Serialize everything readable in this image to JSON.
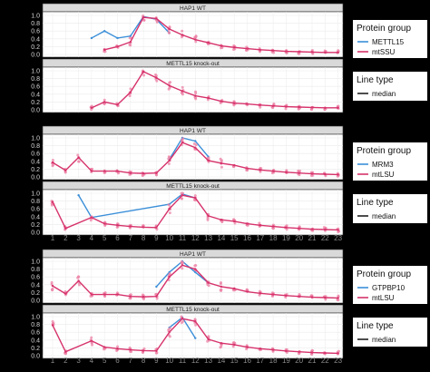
{
  "colors": {
    "blue": "#3b8fd9",
    "red": "#d6336c",
    "red_points": "#ec83a6",
    "grid": "#ebebeb",
    "panel_bg": "#ffffff",
    "page_bg": "#000000"
  },
  "chart_data": [
    {
      "type": "line",
      "group": 1,
      "strip_labels": [
        "HAP1 WT",
        "METTL15 knock-out"
      ],
      "x": [
        1,
        2,
        3,
        4,
        5,
        6,
        7,
        8,
        9,
        10,
        11,
        12,
        13,
        14,
        15,
        16,
        17,
        18,
        19,
        20,
        21,
        22,
        23
      ],
      "ylim": [
        0,
        1.0
      ],
      "y_ticks": [
        "0.0",
        "0.2",
        "0.4",
        "0.6",
        "0.8",
        "1.0"
      ],
      "legend_title_protein": "Protein group",
      "protein_entries": [
        "METTL15",
        "mtSSU"
      ],
      "legend_title_line": "Line type",
      "line_entries": [
        "median"
      ],
      "panels": [
        {
          "series": [
            {
              "name": "METTL15",
              "color": "blue",
              "x": [
                4,
                5,
                6,
                7,
                8,
                9,
                10
              ],
              "y": [
                0.42,
                0.6,
                0.42,
                0.47,
                0.97,
                0.9,
                0.55
              ]
            },
            {
              "name": "mtSSU",
              "color": "red",
              "x": [
                5,
                6,
                7,
                8,
                9,
                10,
                11,
                12,
                13,
                14,
                15,
                16,
                17,
                18,
                19,
                20,
                21,
                22,
                23
              ],
              "y": [
                0.12,
                0.2,
                0.32,
                0.95,
                0.92,
                0.65,
                0.5,
                0.38,
                0.3,
                0.22,
                0.18,
                0.15,
                0.12,
                0.1,
                0.08,
                0.07,
                0.06,
                0.05,
                0.05
              ]
            }
          ]
        },
        {
          "series": [
            {
              "name": "mtSSU",
              "color": "red",
              "x": [
                4,
                5,
                6,
                7,
                8,
                9,
                10,
                11,
                12,
                13,
                14,
                15,
                16,
                17,
                18,
                19,
                20,
                21,
                22,
                23
              ],
              "y": [
                0.05,
                0.2,
                0.13,
                0.45,
                0.98,
                0.82,
                0.62,
                0.48,
                0.36,
                0.3,
                0.22,
                0.17,
                0.15,
                0.12,
                0.1,
                0.08,
                0.07,
                0.06,
                0.05,
                0.05
              ]
            }
          ]
        }
      ]
    },
    {
      "type": "line",
      "group": 2,
      "strip_labels": [
        "HAP1 WT",
        "METTL15 knock-out"
      ],
      "x": [
        1,
        2,
        3,
        4,
        5,
        6,
        7,
        8,
        9,
        10,
        11,
        12,
        13,
        14,
        15,
        16,
        17,
        18,
        19,
        20,
        21,
        22,
        23
      ],
      "ylim": [
        0,
        1.0
      ],
      "y_ticks": [
        "0.0",
        "0.2",
        "0.4",
        "0.6",
        "0.8",
        "1.0"
      ],
      "legend_title_protein": "Protein group",
      "protein_entries": [
        "MRM3",
        "mtLSU"
      ],
      "legend_title_line": "Line type",
      "line_entries": [
        "median"
      ],
      "panels": [
        {
          "series": [
            {
              "name": "MRM3",
              "color": "blue",
              "x": [
                10,
                11,
                12,
                13
              ],
              "y": [
                0.45,
                1.0,
                0.92,
                0.52
              ]
            },
            {
              "name": "mtLSU",
              "color": "red",
              "x": [
                1,
                2,
                3,
                4,
                5,
                6,
                7,
                8,
                9,
                10,
                11,
                12,
                13,
                14,
                15,
                16,
                17,
                18,
                19,
                20,
                21,
                22,
                23
              ],
              "y": [
                0.37,
                0.17,
                0.5,
                0.15,
                0.15,
                0.15,
                0.1,
                0.09,
                0.1,
                0.42,
                0.88,
                0.75,
                0.42,
                0.35,
                0.3,
                0.22,
                0.18,
                0.15,
                0.12,
                0.1,
                0.08,
                0.07,
                0.06
              ]
            }
          ]
        },
        {
          "series": [
            {
              "name": "MRM3",
              "color": "blue",
              "x": [
                3,
                4,
                10,
                11,
                12
              ],
              "y": [
                0.95,
                0.38,
                0.72,
                0.98,
                0.88
              ]
            },
            {
              "name": "mtLSU",
              "color": "red",
              "x": [
                1,
                2,
                4,
                5,
                6,
                7,
                8,
                9,
                10,
                11,
                12,
                13,
                14,
                15,
                16,
                17,
                18,
                19,
                20,
                21,
                22,
                23
              ],
              "y": [
                0.78,
                0.1,
                0.38,
                0.22,
                0.18,
                0.15,
                0.13,
                0.12,
                0.6,
                0.95,
                0.88,
                0.42,
                0.32,
                0.28,
                0.22,
                0.18,
                0.15,
                0.12,
                0.1,
                0.08,
                0.07,
                0.06
              ]
            }
          ]
        }
      ]
    },
    {
      "type": "line",
      "group": 3,
      "strip_labels": [
        "HAP1 WT",
        "METTL15 knock-out"
      ],
      "x": [
        1,
        2,
        3,
        4,
        5,
        6,
        7,
        8,
        9,
        10,
        11,
        12,
        13,
        14,
        15,
        16,
        17,
        18,
        19,
        20,
        21,
        22,
        23
      ],
      "ylim": [
        0,
        1.0
      ],
      "y_ticks": [
        "0.0",
        "0.2",
        "0.4",
        "0.6",
        "0.8",
        "1.0"
      ],
      "legend_title_protein": "Protein group",
      "protein_entries": [
        "GTPBP10",
        "mtLSU"
      ],
      "legend_title_line": "Line type",
      "line_entries": [
        "median"
      ],
      "panels": [
        {
          "series": [
            {
              "name": "GTPBP10",
              "color": "blue",
              "x": [
                9,
                10,
                11,
                12,
                13
              ],
              "y": [
                0.35,
                0.72,
                1.0,
                0.72,
                0.45
              ]
            },
            {
              "name": "mtLSU",
              "color": "red",
              "x": [
                1,
                2,
                3,
                4,
                5,
                6,
                7,
                8,
                9,
                10,
                11,
                12,
                13,
                14,
                15,
                16,
                17,
                18,
                19,
                20,
                21,
                22,
                23
              ],
              "y": [
                0.37,
                0.17,
                0.5,
                0.15,
                0.15,
                0.15,
                0.1,
                0.09,
                0.1,
                0.6,
                0.9,
                0.8,
                0.45,
                0.35,
                0.3,
                0.22,
                0.18,
                0.15,
                0.12,
                0.1,
                0.08,
                0.07,
                0.06
              ]
            }
          ]
        },
        {
          "series": [
            {
              "name": "GTPBP10",
              "color": "blue",
              "x": [
                10,
                11,
                12
              ],
              "y": [
                0.72,
                0.98,
                0.45
              ]
            },
            {
              "name": "mtLSU",
              "color": "red",
              "x": [
                1,
                2,
                4,
                5,
                6,
                7,
                8,
                9,
                10,
                11,
                12,
                13,
                14,
                15,
                16,
                17,
                18,
                19,
                20,
                21,
                22,
                23
              ],
              "y": [
                0.78,
                0.1,
                0.38,
                0.22,
                0.18,
                0.15,
                0.13,
                0.12,
                0.6,
                0.95,
                0.88,
                0.42,
                0.32,
                0.28,
                0.22,
                0.18,
                0.15,
                0.12,
                0.1,
                0.08,
                0.07,
                0.06
              ]
            }
          ]
        }
      ]
    }
  ]
}
